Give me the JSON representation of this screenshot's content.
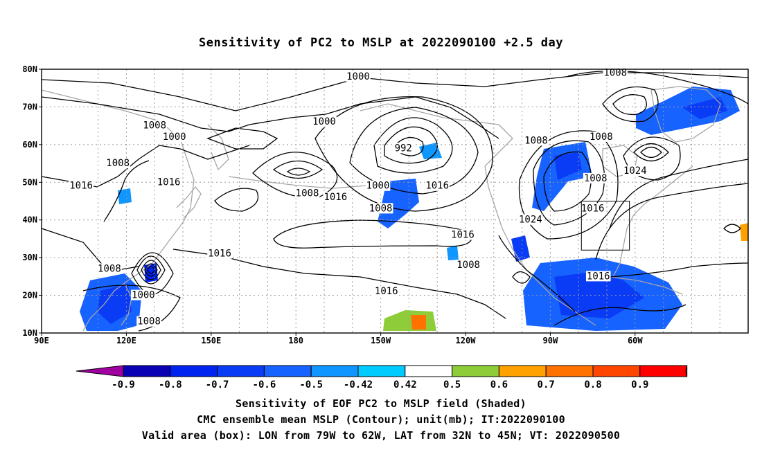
{
  "title": "Sensitivity of PC2 to MSLP at 2022090100 +2.5 day",
  "map": {
    "lon_labels": [
      "90E",
      "120E",
      "150E",
      "180",
      "150W",
      "120W",
      "90W",
      "60W"
    ],
    "lat_labels": [
      "80N",
      "70N",
      "60N",
      "50N",
      "40N",
      "30N",
      "20N",
      "10N"
    ],
    "contour_labels": [
      {
        "text": "1000",
        "lon": -158,
        "lat": 78
      },
      {
        "text": "1008",
        "lon": -67,
        "lat": 79
      },
      {
        "text": "1000",
        "lon": -170,
        "lat": 66
      },
      {
        "text": "1008",
        "lon": 130,
        "lat": 65
      },
      {
        "text": "1000",
        "lon": 137,
        "lat": 62
      },
      {
        "text": "992",
        "lon": -142,
        "lat": 59
      },
      {
        "text": "1008",
        "lon": -95,
        "lat": 61
      },
      {
        "text": "1008",
        "lon": -72,
        "lat": 62
      },
      {
        "text": "1008",
        "lon": 117,
        "lat": 55
      },
      {
        "text": "1008",
        "lon": -74,
        "lat": 51
      },
      {
        "text": "1024",
        "lon": -60,
        "lat": 53
      },
      {
        "text": "1016",
        "lon": 104,
        "lat": 49
      },
      {
        "text": "1016",
        "lon": 135,
        "lat": 50
      },
      {
        "text": "1000",
        "lon": -151,
        "lat": 49
      },
      {
        "text": "1008",
        "lon": -176,
        "lat": 47
      },
      {
        "text": "1016",
        "lon": -166,
        "lat": 46
      },
      {
        "text": "1016",
        "lon": -130,
        "lat": 49
      },
      {
        "text": "1008",
        "lon": -150,
        "lat": 43
      },
      {
        "text": "1016",
        "lon": -75,
        "lat": 43
      },
      {
        "text": "1024",
        "lon": -97,
        "lat": 40
      },
      {
        "text": "1016",
        "lon": -121,
        "lat": 36
      },
      {
        "text": "1016",
        "lon": 153,
        "lat": 31
      },
      {
        "text": "1008",
        "lon": -119,
        "lat": 28
      },
      {
        "text": "1008",
        "lon": 114,
        "lat": 27
      },
      {
        "text": "1016",
        "lon": -73,
        "lat": 25
      },
      {
        "text": "1000",
        "lon": 126,
        "lat": 20
      },
      {
        "text": "1016",
        "lon": -148,
        "lat": 21
      },
      {
        "text": "1008",
        "lon": 128,
        "lat": 13
      }
    ],
    "valid_box": {
      "lon_min": -79,
      "lon_max": -62,
      "lat_min": 32,
      "lat_max": 45
    }
  },
  "colorbar": {
    "ticks": [
      "-0.9",
      "-0.8",
      "-0.7",
      "-0.6",
      "-0.5",
      "-0.42",
      "0.42",
      "0.5",
      "0.6",
      "0.7",
      "0.8",
      "0.9"
    ],
    "colors": [
      "#a0009f",
      "#0a00b4",
      "#0024f0",
      "#0a3cf5",
      "#1763ff",
      "#0f96ff",
      "#00cbff",
      "#ffffff",
      "#8fcc3a",
      "#ffa100",
      "#ff7200",
      "#ff4600",
      "#ff0000",
      "#ff99cc"
    ]
  },
  "captions": {
    "line1": "Sensitivity of EOF PC2 to MSLP field (Shaded)",
    "line2": "CMC ensemble mean MSLP (Contour); unit(mb); IT:2022090100",
    "line3": "Valid area (box): LON from 79W to 62W, LAT from 32N to 45N; VT: 2022090500"
  }
}
